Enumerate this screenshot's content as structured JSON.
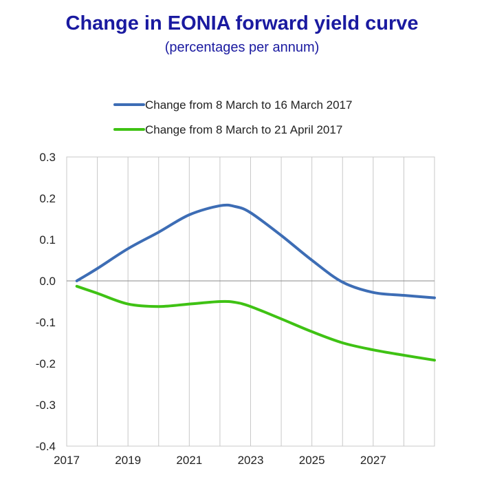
{
  "chart_data": {
    "type": "line",
    "title": "Change in EONIA forward yield curve",
    "subtitle": "(percentages per annum)",
    "xlabel": "",
    "ylabel": "",
    "xlim": [
      2017,
      2029
    ],
    "ylim": [
      -0.4,
      0.3
    ],
    "x_ticks": [
      "2017",
      "2019",
      "2021",
      "2023",
      "2025",
      "2027"
    ],
    "y_ticks": [
      "0.3",
      "0.2",
      "0.1",
      "0.0",
      "-0.1",
      "-0.2",
      "-0.3",
      "-0.4"
    ],
    "grid": "vertical",
    "legend_position": "top",
    "series": [
      {
        "name": "Change from 8 March to 16 March 2017",
        "color": "#3d6db5",
        "x": [
          2017.33,
          2018.0,
          2019.0,
          2020.0,
          2021.0,
          2022.0,
          2022.5,
          2023.0,
          2024.0,
          2025.0,
          2026.0,
          2027.0,
          2028.0,
          2029.0
        ],
        "y": [
          0.0,
          0.03,
          0.078,
          0.118,
          0.16,
          0.182,
          0.18,
          0.165,
          0.11,
          0.05,
          -0.003,
          -0.028,
          -0.035,
          -0.041
        ]
      },
      {
        "name": "Change from 8 March to 21 April 2017",
        "color": "#3fc214",
        "x": [
          2017.33,
          2018.0,
          2019.0,
          2020.0,
          2021.0,
          2022.0,
          2022.5,
          2023.0,
          2024.0,
          2025.0,
          2026.0,
          2027.0,
          2028.0,
          2029.0
        ],
        "y": [
          -0.013,
          -0.03,
          -0.056,
          -0.062,
          -0.056,
          -0.05,
          -0.052,
          -0.062,
          -0.092,
          -0.123,
          -0.15,
          -0.167,
          -0.18,
          -0.192
        ]
      }
    ]
  }
}
